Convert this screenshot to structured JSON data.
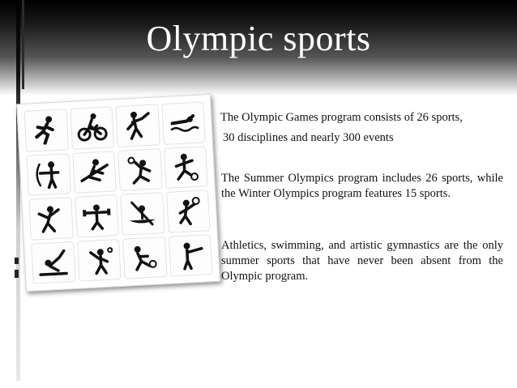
{
  "slide": {
    "title": "Olympic sports",
    "paragraph1_line1": "The Olympic Games program consists of 26 sports,",
    "paragraph1_line2": "30 disciplines and nearly 300 events",
    "paragraph2": "The Summer Olympics program includes 26 sports, while the Winter Olympics program features 15 sports.",
    "paragraph3": "Athletics, swimming,  and artistic gymnastics are the only summer sports that have never been absent from the Olympic program."
  },
  "pictograms": [
    "running-icon",
    "cycling-icon",
    "hockey-icon",
    "swimming-icon",
    "archery-icon",
    "rowing-icon",
    "volleyball-icon",
    "football-icon",
    "baseball-icon",
    "weightlifting-icon",
    "canoe-icon",
    "basketball-icon",
    "gymnastics-icon",
    "badminton-icon",
    "handball-icon",
    "shooting-icon"
  ]
}
